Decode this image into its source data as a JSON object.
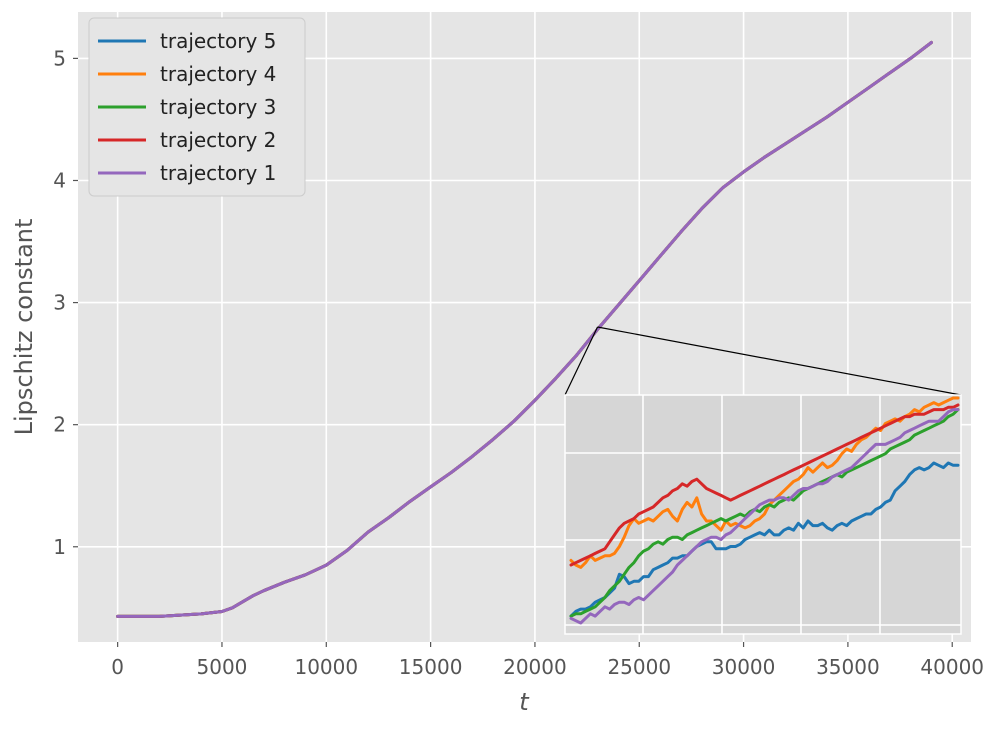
{
  "chart_data": {
    "type": "line",
    "title": "",
    "xlabel": "t",
    "ylabel": "Lipschitz constant",
    "xlim": [
      -1900,
      40900
    ],
    "ylim": [
      0.22,
      5.38
    ],
    "xticks": [
      0,
      5000,
      10000,
      15000,
      20000,
      25000,
      30000,
      35000,
      40000
    ],
    "yticks": [
      1,
      2,
      3,
      4,
      5
    ],
    "grid": true,
    "legend_position": "upper-left",
    "series": [
      {
        "name": "trajectory 5",
        "color": "#1f77b4"
      },
      {
        "name": "trajectory 4",
        "color": "#ff7f0e"
      },
      {
        "name": "trajectory 3",
        "color": "#2ca02c"
      },
      {
        "name": "trajectory 2",
        "color": "#d62728"
      },
      {
        "name": "trajectory 1",
        "color": "#9467bd"
      }
    ],
    "main_curve": {
      "x": [
        0,
        1000,
        2000,
        3000,
        4000,
        5000,
        5500,
        6000,
        6500,
        7000,
        8000,
        9000,
        10000,
        11000,
        12000,
        13000,
        14000,
        15000,
        16000,
        17000,
        18000,
        19000,
        20000,
        21000,
        22000,
        23000,
        24000,
        25000,
        26000,
        27000,
        28000,
        29000,
        30000,
        31000,
        32000,
        33000,
        34000,
        35000,
        36000,
        37000,
        38000,
        39000
      ],
      "y": [
        0.43,
        0.43,
        0.43,
        0.44,
        0.45,
        0.47,
        0.5,
        0.55,
        0.6,
        0.64,
        0.71,
        0.77,
        0.85,
        0.97,
        1.12,
        1.24,
        1.37,
        1.49,
        1.61,
        1.74,
        1.88,
        2.03,
        2.2,
        2.38,
        2.57,
        2.78,
        2.98,
        3.18,
        3.38,
        3.58,
        3.77,
        3.94,
        4.07,
        4.19,
        4.3,
        4.41,
        4.52,
        4.64,
        4.76,
        4.88,
        5.0,
        5.13
      ]
    },
    "inset": {
      "zoom_point": {
        "x": 23000,
        "y": 2.8
      },
      "x": [
        0,
        1,
        2,
        3,
        4,
        5,
        6,
        7,
        8,
        9,
        10,
        11,
        12,
        13,
        14,
        15,
        16,
        17,
        18,
        19,
        20,
        21,
        22,
        23,
        24,
        25,
        26,
        27,
        28,
        29,
        30,
        31,
        32,
        33,
        34,
        35,
        36,
        37,
        38,
        39,
        40,
        41,
        42,
        43,
        44,
        45,
        46,
        47,
        48,
        49,
        50,
        51,
        52,
        53,
        54,
        55,
        56,
        57,
        58,
        59,
        60,
        61,
        62,
        63,
        64,
        65,
        66,
        67,
        68,
        69,
        70,
        71,
        72,
        73,
        74,
        75,
        76,
        77,
        78,
        79,
        80
      ],
      "ylim": [
        0,
        1.0
      ],
      "series_values": [
        [
          0.06,
          0.08,
          0.09,
          0.09,
          0.1,
          0.12,
          0.13,
          0.14,
          0.16,
          0.18,
          0.24,
          0.23,
          0.2,
          0.21,
          0.21,
          0.23,
          0.23,
          0.26,
          0.27,
          0.28,
          0.29,
          0.31,
          0.31,
          0.32,
          0.32,
          0.34,
          0.36,
          0.37,
          0.38,
          0.38,
          0.35,
          0.35,
          0.35,
          0.36,
          0.36,
          0.37,
          0.39,
          0.4,
          0.41,
          0.42,
          0.41,
          0.43,
          0.41,
          0.41,
          0.43,
          0.44,
          0.43,
          0.46,
          0.44,
          0.47,
          0.45,
          0.45,
          0.46,
          0.44,
          0.43,
          0.45,
          0.46,
          0.45,
          0.47,
          0.48,
          0.49,
          0.5,
          0.5,
          0.52,
          0.53,
          0.55,
          0.56,
          0.6,
          0.62,
          0.64,
          0.67,
          0.69,
          0.7,
          0.69,
          0.7,
          0.72,
          0.71,
          0.7,
          0.72,
          0.71,
          0.71
        ],
        [
          0.3,
          0.28,
          0.27,
          0.29,
          0.32,
          0.3,
          0.31,
          0.32,
          0.32,
          0.33,
          0.36,
          0.4,
          0.45,
          0.48,
          0.46,
          0.47,
          0.48,
          0.47,
          0.49,
          0.51,
          0.52,
          0.49,
          0.47,
          0.52,
          0.55,
          0.53,
          0.57,
          0.5,
          0.47,
          0.47,
          0.45,
          0.43,
          0.47,
          0.45,
          0.46,
          0.45,
          0.44,
          0.45,
          0.47,
          0.48,
          0.5,
          0.54,
          0.56,
          0.58,
          0.6,
          0.62,
          0.64,
          0.65,
          0.67,
          0.7,
          0.68,
          0.7,
          0.72,
          0.7,
          0.71,
          0.73,
          0.76,
          0.78,
          0.77,
          0.8,
          0.82,
          0.83,
          0.85,
          0.87,
          0.86,
          0.89,
          0.9,
          0.91,
          0.9,
          0.92,
          0.93,
          0.95,
          0.94,
          0.96,
          0.97,
          0.98,
          0.97,
          0.98,
          0.99,
          1.0,
          1.0
        ],
        [
          0.06,
          0.07,
          0.07,
          0.08,
          0.09,
          0.1,
          0.12,
          0.14,
          0.17,
          0.19,
          0.21,
          0.24,
          0.27,
          0.29,
          0.32,
          0.34,
          0.35,
          0.37,
          0.38,
          0.37,
          0.39,
          0.4,
          0.4,
          0.39,
          0.41,
          0.42,
          0.43,
          0.44,
          0.45,
          0.46,
          0.47,
          0.48,
          0.47,
          0.48,
          0.49,
          0.5,
          0.49,
          0.51,
          0.52,
          0.51,
          0.53,
          0.54,
          0.53,
          0.55,
          0.56,
          0.57,
          0.56,
          0.58,
          0.6,
          0.61,
          0.62,
          0.63,
          0.64,
          0.65,
          0.66,
          0.67,
          0.66,
          0.68,
          0.69,
          0.7,
          0.71,
          0.72,
          0.73,
          0.74,
          0.75,
          0.76,
          0.78,
          0.79,
          0.8,
          0.81,
          0.82,
          0.84,
          0.85,
          0.86,
          0.87,
          0.88,
          0.89,
          0.9,
          0.92,
          0.93,
          0.95
        ],
        [
          0.28,
          0.29,
          0.3,
          0.31,
          0.32,
          0.33,
          0.34,
          0.35,
          0.38,
          0.41,
          0.44,
          0.46,
          0.47,
          0.48,
          0.5,
          0.51,
          0.52,
          0.53,
          0.55,
          0.57,
          0.58,
          0.6,
          0.61,
          0.63,
          0.62,
          0.64,
          0.65,
          0.63,
          0.61,
          0.6,
          0.59,
          0.58,
          0.57,
          0.56,
          0.57,
          0.58,
          0.59,
          0.6,
          0.61,
          0.62,
          0.63,
          0.64,
          0.65,
          0.66,
          0.67,
          0.68,
          0.69,
          0.7,
          0.71,
          0.72,
          0.73,
          0.74,
          0.75,
          0.76,
          0.77,
          0.78,
          0.79,
          0.8,
          0.81,
          0.82,
          0.83,
          0.84,
          0.85,
          0.86,
          0.87,
          0.88,
          0.89,
          0.9,
          0.91,
          0.92,
          0.92,
          0.93,
          0.93,
          0.93,
          0.94,
          0.95,
          0.95,
          0.95,
          0.96,
          0.96,
          0.97
        ],
        [
          0.05,
          0.04,
          0.03,
          0.05,
          0.07,
          0.06,
          0.08,
          0.1,
          0.09,
          0.11,
          0.12,
          0.12,
          0.11,
          0.13,
          0.14,
          0.13,
          0.15,
          0.17,
          0.19,
          0.21,
          0.23,
          0.25,
          0.28,
          0.3,
          0.32,
          0.34,
          0.36,
          0.38,
          0.39,
          0.4,
          0.4,
          0.39,
          0.41,
          0.42,
          0.44,
          0.46,
          0.48,
          0.5,
          0.52,
          0.54,
          0.55,
          0.56,
          0.56,
          0.57,
          0.57,
          0.56,
          0.58,
          0.6,
          0.61,
          0.61,
          0.62,
          0.63,
          0.63,
          0.64,
          0.66,
          0.67,
          0.68,
          0.69,
          0.7,
          0.72,
          0.74,
          0.76,
          0.78,
          0.8,
          0.8,
          0.8,
          0.81,
          0.82,
          0.83,
          0.85,
          0.86,
          0.87,
          0.88,
          0.89,
          0.9,
          0.9,
          0.9,
          0.92,
          0.94,
          0.95,
          0.95
        ]
      ]
    }
  }
}
